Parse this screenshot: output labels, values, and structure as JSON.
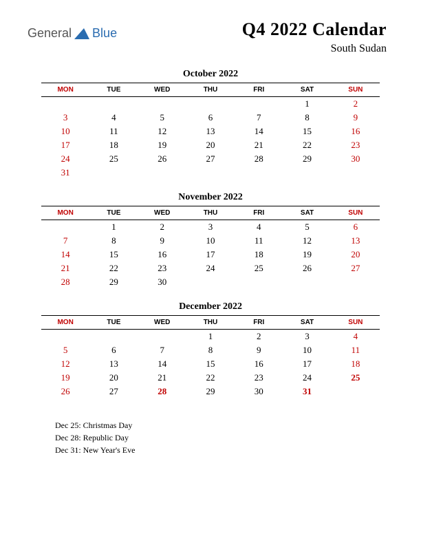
{
  "logo": {
    "word1": "General",
    "word2": "Blue",
    "icon_color": "#2a6cb0"
  },
  "title": "Q4 2022 Calendar",
  "subtitle": "South Sudan",
  "colors": {
    "holiday_text": "#c00000",
    "normal_text": "#000000",
    "background": "#ffffff",
    "header_border": "#000000"
  },
  "day_headers": [
    "MON",
    "TUE",
    "WED",
    "THU",
    "FRI",
    "SAT",
    "SUN"
  ],
  "red_header_cols": [
    0,
    6
  ],
  "months": [
    {
      "title": "October 2022",
      "weeks": [
        [
          null,
          null,
          null,
          null,
          null,
          {
            "d": 1
          },
          {
            "d": 2,
            "r": 1
          }
        ],
        [
          {
            "d": 3,
            "r": 1
          },
          {
            "d": 4
          },
          {
            "d": 5
          },
          {
            "d": 6
          },
          {
            "d": 7
          },
          {
            "d": 8
          },
          {
            "d": 9,
            "r": 1
          }
        ],
        [
          {
            "d": 10,
            "r": 1
          },
          {
            "d": 11
          },
          {
            "d": 12
          },
          {
            "d": 13
          },
          {
            "d": 14
          },
          {
            "d": 15
          },
          {
            "d": 16,
            "r": 1
          }
        ],
        [
          {
            "d": 17,
            "r": 1
          },
          {
            "d": 18
          },
          {
            "d": 19
          },
          {
            "d": 20
          },
          {
            "d": 21
          },
          {
            "d": 22
          },
          {
            "d": 23,
            "r": 1
          }
        ],
        [
          {
            "d": 24,
            "r": 1
          },
          {
            "d": 25
          },
          {
            "d": 26
          },
          {
            "d": 27
          },
          {
            "d": 28
          },
          {
            "d": 29
          },
          {
            "d": 30,
            "r": 1
          }
        ],
        [
          {
            "d": 31,
            "r": 1
          },
          null,
          null,
          null,
          null,
          null,
          null
        ]
      ]
    },
    {
      "title": "November 2022",
      "weeks": [
        [
          null,
          {
            "d": 1
          },
          {
            "d": 2
          },
          {
            "d": 3
          },
          {
            "d": 4
          },
          {
            "d": 5
          },
          {
            "d": 6,
            "r": 1
          }
        ],
        [
          {
            "d": 7,
            "r": 1
          },
          {
            "d": 8
          },
          {
            "d": 9
          },
          {
            "d": 10
          },
          {
            "d": 11
          },
          {
            "d": 12
          },
          {
            "d": 13,
            "r": 1
          }
        ],
        [
          {
            "d": 14,
            "r": 1
          },
          {
            "d": 15
          },
          {
            "d": 16
          },
          {
            "d": 17
          },
          {
            "d": 18
          },
          {
            "d": 19
          },
          {
            "d": 20,
            "r": 1
          }
        ],
        [
          {
            "d": 21,
            "r": 1
          },
          {
            "d": 22
          },
          {
            "d": 23
          },
          {
            "d": 24
          },
          {
            "d": 25
          },
          {
            "d": 26
          },
          {
            "d": 27,
            "r": 1
          }
        ],
        [
          {
            "d": 28,
            "r": 1
          },
          {
            "d": 29
          },
          {
            "d": 30
          },
          null,
          null,
          null,
          null
        ]
      ]
    },
    {
      "title": "December 2022",
      "weeks": [
        [
          null,
          null,
          null,
          {
            "d": 1
          },
          {
            "d": 2
          },
          {
            "d": 3
          },
          {
            "d": 4,
            "r": 1
          }
        ],
        [
          {
            "d": 5,
            "r": 1
          },
          {
            "d": 6
          },
          {
            "d": 7
          },
          {
            "d": 8
          },
          {
            "d": 9
          },
          {
            "d": 10
          },
          {
            "d": 11,
            "r": 1
          }
        ],
        [
          {
            "d": 12,
            "r": 1
          },
          {
            "d": 13
          },
          {
            "d": 14
          },
          {
            "d": 15
          },
          {
            "d": 16
          },
          {
            "d": 17
          },
          {
            "d": 18,
            "r": 1
          }
        ],
        [
          {
            "d": 19,
            "r": 1
          },
          {
            "d": 20
          },
          {
            "d": 21
          },
          {
            "d": 22
          },
          {
            "d": 23
          },
          {
            "d": 24
          },
          {
            "d": 25,
            "r": 1,
            "b": 1
          }
        ],
        [
          {
            "d": 26,
            "r": 1
          },
          {
            "d": 27
          },
          {
            "d": 28,
            "r": 1,
            "b": 1
          },
          {
            "d": 29
          },
          {
            "d": 30
          },
          {
            "d": 31,
            "r": 1,
            "b": 1
          },
          null
        ]
      ]
    }
  ],
  "holidays": [
    "Dec 25: Christmas Day",
    "Dec 28: Republic Day",
    "Dec 31: New Year's Eve"
  ]
}
